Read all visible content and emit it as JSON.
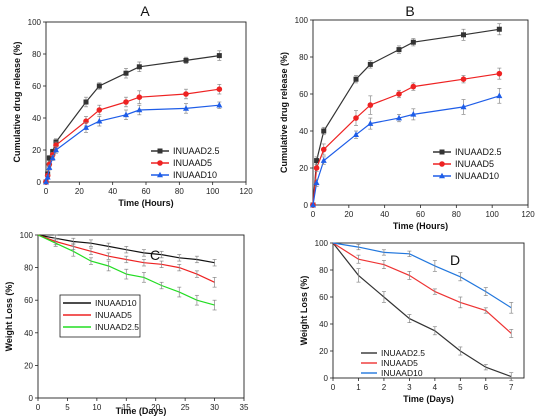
{
  "chart_data": [
    {
      "panel": "A",
      "type": "line",
      "title": "A",
      "xlabel": "Time (Hours)",
      "ylabel": "Cumulative drug release (%)",
      "xlim": [
        0,
        120
      ],
      "ylim": [
        0,
        100
      ],
      "xticks": [
        0,
        20,
        40,
        60,
        80,
        100,
        120
      ],
      "yticks": [
        0,
        20,
        40,
        60,
        80,
        100
      ],
      "legend_position": "lower-right",
      "grid": false,
      "series": [
        {
          "name": "INUAAD2.5",
          "color": "#333333",
          "marker": "square",
          "x": [
            0,
            1,
            2,
            4,
            6,
            24,
            32,
            48,
            56,
            84,
            104
          ],
          "y": [
            0,
            5,
            15,
            19,
            25,
            50,
            60,
            68,
            72,
            76,
            79
          ],
          "err": [
            0,
            1,
            1.5,
            1.5,
            2,
            3,
            2,
            3,
            3,
            2,
            3
          ]
        },
        {
          "name": "INUAAD5",
          "color": "#ee2222",
          "marker": "circle",
          "x": [
            0,
            1,
            2,
            4,
            6,
            24,
            32,
            48,
            56,
            84,
            104
          ],
          "y": [
            0,
            4,
            11,
            17,
            23,
            38,
            45,
            50,
            53,
            55,
            58
          ],
          "err": [
            0,
            1,
            1.5,
            1.5,
            2,
            3,
            3,
            3,
            4,
            3,
            3
          ]
        },
        {
          "name": "INUAAD10",
          "color": "#1e5de8",
          "marker": "triangle",
          "x": [
            0,
            1,
            2,
            4,
            6,
            24,
            32,
            48,
            56,
            84,
            104
          ],
          "y": [
            0,
            3,
            9,
            15,
            20,
            34,
            38,
            42,
            45,
            46,
            48
          ],
          "err": [
            0,
            1,
            1.5,
            1.5,
            2,
            3,
            3,
            3,
            3,
            3,
            2
          ]
        }
      ]
    },
    {
      "panel": "B",
      "type": "line",
      "title": "B",
      "xlabel": "Time (Hours)",
      "ylabel": "Cumulative drug release (%)",
      "xlim": [
        0,
        120
      ],
      "ylim": [
        0,
        100
      ],
      "xticks": [
        0,
        20,
        40,
        60,
        80,
        100,
        120
      ],
      "yticks": [
        0,
        20,
        40,
        60,
        80,
        100
      ],
      "legend_position": "lower-right",
      "grid": false,
      "series": [
        {
          "name": "INUAAD2.5",
          "color": "#333333",
          "marker": "square",
          "x": [
            0,
            2,
            6,
            24,
            32,
            48,
            56,
            84,
            104
          ],
          "y": [
            0,
            24,
            40,
            68,
            76,
            84,
            88,
            92,
            95
          ],
          "err": [
            0,
            2,
            2,
            2,
            2,
            2,
            2,
            3,
            3
          ]
        },
        {
          "name": "INUAAD5",
          "color": "#ee2222",
          "marker": "circle",
          "x": [
            0,
            2,
            6,
            24,
            32,
            48,
            56,
            84,
            104
          ],
          "y": [
            0,
            20,
            30,
            47,
            54,
            60,
            64,
            68,
            71
          ],
          "err": [
            0,
            2,
            3,
            4,
            5,
            2,
            2,
            2,
            3
          ]
        },
        {
          "name": "INUAAD10",
          "color": "#1e5de8",
          "marker": "triangle",
          "x": [
            0,
            2,
            6,
            24,
            32,
            48,
            56,
            84,
            104
          ],
          "y": [
            0,
            12,
            24,
            38,
            44,
            47,
            49,
            53,
            59
          ],
          "err": [
            0,
            2,
            2,
            2,
            3,
            2,
            3,
            4,
            4
          ]
        }
      ]
    },
    {
      "panel": "C",
      "type": "line",
      "title": "C",
      "xlabel": "Time (Days)",
      "ylabel": "Weight Loss (%)",
      "xlim": [
        0,
        35
      ],
      "ylim": [
        0,
        100
      ],
      "xticks": [
        0,
        5,
        10,
        15,
        20,
        25,
        30,
        35
      ],
      "yticks": [
        0,
        20,
        40,
        60,
        80,
        100
      ],
      "legend_position": "lower-left",
      "grid": false,
      "series": [
        {
          "name": "INUAAD10",
          "color": "#111111",
          "x": [
            0,
            3,
            6,
            9,
            12,
            15,
            18,
            21,
            24,
            27,
            30
          ],
          "y": [
            100,
            98,
            96,
            95,
            93,
            91,
            89,
            88,
            86,
            85,
            83
          ],
          "err": [
            0,
            2,
            2,
            2,
            2,
            2,
            2,
            2,
            2,
            2,
            2
          ]
        },
        {
          "name": "INUAAD5",
          "color": "#ee2222",
          "x": [
            0,
            3,
            6,
            9,
            12,
            15,
            18,
            21,
            24,
            27,
            30
          ],
          "y": [
            100,
            96,
            93,
            90,
            87,
            85,
            83,
            82,
            80,
            76,
            71
          ],
          "err": [
            0,
            2,
            2,
            2,
            2,
            2,
            2,
            2,
            2,
            2,
            3
          ]
        },
        {
          "name": "INUAAD2.5",
          "color": "#22dd22",
          "x": [
            0,
            3,
            6,
            9,
            12,
            15,
            18,
            21,
            24,
            27,
            30
          ],
          "y": [
            100,
            95,
            90,
            84,
            81,
            76,
            74,
            69,
            65,
            60,
            57
          ],
          "err": [
            0,
            2,
            3,
            2,
            3,
            3,
            3,
            2,
            3,
            3,
            3
          ]
        }
      ]
    },
    {
      "panel": "D",
      "type": "line",
      "title": "D",
      "xlabel": "Time (Days)",
      "ylabel": "Weight Loss (%)",
      "xlim": [
        0,
        7.5
      ],
      "ylim": [
        0,
        100
      ],
      "xticks": [
        0,
        1,
        2,
        3,
        4,
        5,
        6,
        7
      ],
      "yticks": [
        0,
        20,
        40,
        60,
        80,
        100
      ],
      "legend_position": "lower-left",
      "grid": false,
      "series": [
        {
          "name": "INUAAD2.5",
          "color": "#333333",
          "x": [
            0,
            1,
            2,
            3,
            4,
            5,
            6,
            7
          ],
          "y": [
            100,
            76,
            60,
            44,
            35,
            20,
            8,
            1
          ],
          "err": [
            0,
            5,
            4,
            3,
            3,
            3,
            2,
            3
          ]
        },
        {
          "name": "INUAAD5",
          "color": "#ee3333",
          "x": [
            0,
            1,
            2,
            3,
            4,
            5,
            6,
            7
          ],
          "y": [
            100,
            88,
            84,
            76,
            64,
            56,
            50,
            33
          ],
          "err": [
            0,
            3,
            3,
            3,
            2,
            4,
            2,
            3
          ]
        },
        {
          "name": "INUAAD10",
          "color": "#2277dd",
          "x": [
            0,
            1,
            2,
            3,
            4,
            5,
            6,
            7
          ],
          "y": [
            100,
            97,
            93,
            92,
            83,
            75,
            64,
            52
          ],
          "err": [
            0,
            2,
            2,
            2,
            4,
            3,
            3,
            4
          ]
        }
      ]
    }
  ]
}
